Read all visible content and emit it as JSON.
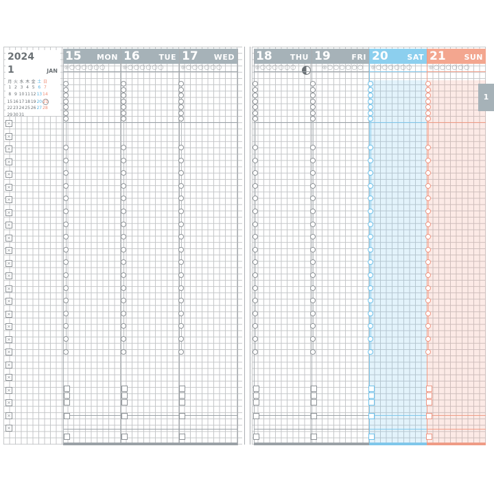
{
  "calendar": {
    "year": "2024",
    "month_number": "1",
    "month_name": "JAN",
    "weekday_header": [
      "月",
      "火",
      "水",
      "木",
      "金",
      "土",
      "日"
    ],
    "weeks": [
      [
        "1",
        "2",
        "3",
        "4",
        "5",
        "6",
        "7"
      ],
      [
        "8",
        "9",
        "10",
        "11",
        "12",
        "13",
        "14"
      ],
      [
        "15",
        "16",
        "17",
        "18",
        "19",
        "20",
        "21"
      ],
      [
        "22",
        "23",
        "24",
        "25",
        "26",
        "27",
        "28"
      ],
      [
        "29",
        "30",
        "31",
        "",
        "",
        "",
        ""
      ]
    ],
    "highlighted_day": "21"
  },
  "days": [
    {
      "number": "15",
      "weekday": "MON"
    },
    {
      "number": "16",
      "weekday": "TUE"
    },
    {
      "number": "17",
      "weekday": "WED"
    },
    {
      "number": "18",
      "weekday": "THU"
    },
    {
      "number": "19",
      "weekday": "FRI"
    },
    {
      "number": "20",
      "weekday": "SAT"
    },
    {
      "number": "21",
      "weekday": "SUN"
    }
  ],
  "side_tab": {
    "label": "1"
  },
  "header_icons": "◎◯◯◯◯◯◯",
  "colors": {
    "gray": "#a6b2b8",
    "saturday": "#8ccfee",
    "sunday": "#f3a68f"
  }
}
